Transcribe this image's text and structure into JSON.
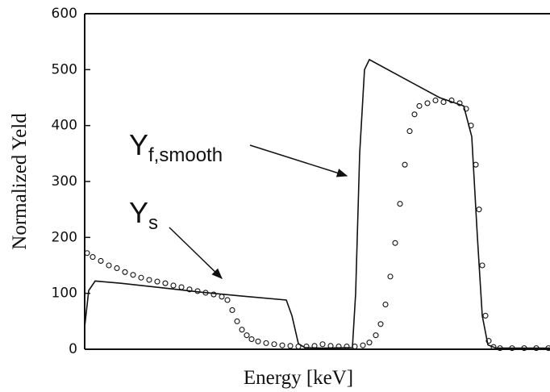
{
  "chart_data": {
    "type": "line",
    "xlabel": "Energy [keV]",
    "ylabel": "Normalized Yeld",
    "xlim": [
      0,
      577
    ],
    "ylim": [
      0,
      600
    ],
    "yticks": [
      0,
      100,
      200,
      300,
      400,
      500,
      600
    ],
    "annotations": [
      {
        "text": "Y",
        "subscript": "f,smooth"
      },
      {
        "text": "Y",
        "subscript": "s"
      }
    ],
    "series": [
      {
        "style": "line",
        "color": "#111111",
        "x": [
          0,
          5,
          13,
          45,
          95,
          145,
          195,
          250,
          257,
          265,
          273,
          295,
          332,
          336,
          341,
          347,
          353,
          395,
          440,
          470,
          480,
          487,
          493,
          500,
          510,
          577
        ],
        "values": [
          40,
          105,
          122,
          118,
          110,
          102,
          95,
          88,
          60,
          10,
          3,
          2,
          3,
          100,
          350,
          500,
          518,
          485,
          450,
          435,
          380,
          200,
          60,
          8,
          2,
          2
        ]
      },
      {
        "style": "markers",
        "color": "#111111",
        "x": [
          3,
          10,
          20,
          30,
          40,
          50,
          60,
          70,
          80,
          90,
          100,
          110,
          120,
          130,
          140,
          150,
          160,
          170,
          177,
          183,
          189,
          195,
          201,
          207,
          215,
          225,
          235,
          245,
          255,
          265,
          275,
          285,
          295,
          305,
          315,
          325,
          335,
          345,
          353,
          361,
          367,
          373,
          379,
          385,
          391,
          397,
          403,
          409,
          415,
          425,
          435,
          445,
          455,
          465,
          473,
          479,
          485,
          489,
          493,
          497,
          501,
          507,
          515,
          530,
          545,
          560,
          575
        ],
        "values": [
          172,
          165,
          158,
          150,
          145,
          138,
          133,
          128,
          124,
          121,
          118,
          114,
          111,
          107,
          104,
          101,
          98,
          94,
          88,
          70,
          50,
          35,
          25,
          18,
          14,
          11,
          9,
          7,
          6,
          5,
          5,
          6,
          9,
          6,
          5,
          5,
          5,
          7,
          12,
          25,
          45,
          80,
          130,
          190,
          260,
          330,
          390,
          420,
          435,
          440,
          445,
          442,
          445,
          440,
          430,
          400,
          330,
          250,
          150,
          60,
          15,
          4,
          2,
          2,
          2,
          2,
          2
        ]
      }
    ]
  }
}
